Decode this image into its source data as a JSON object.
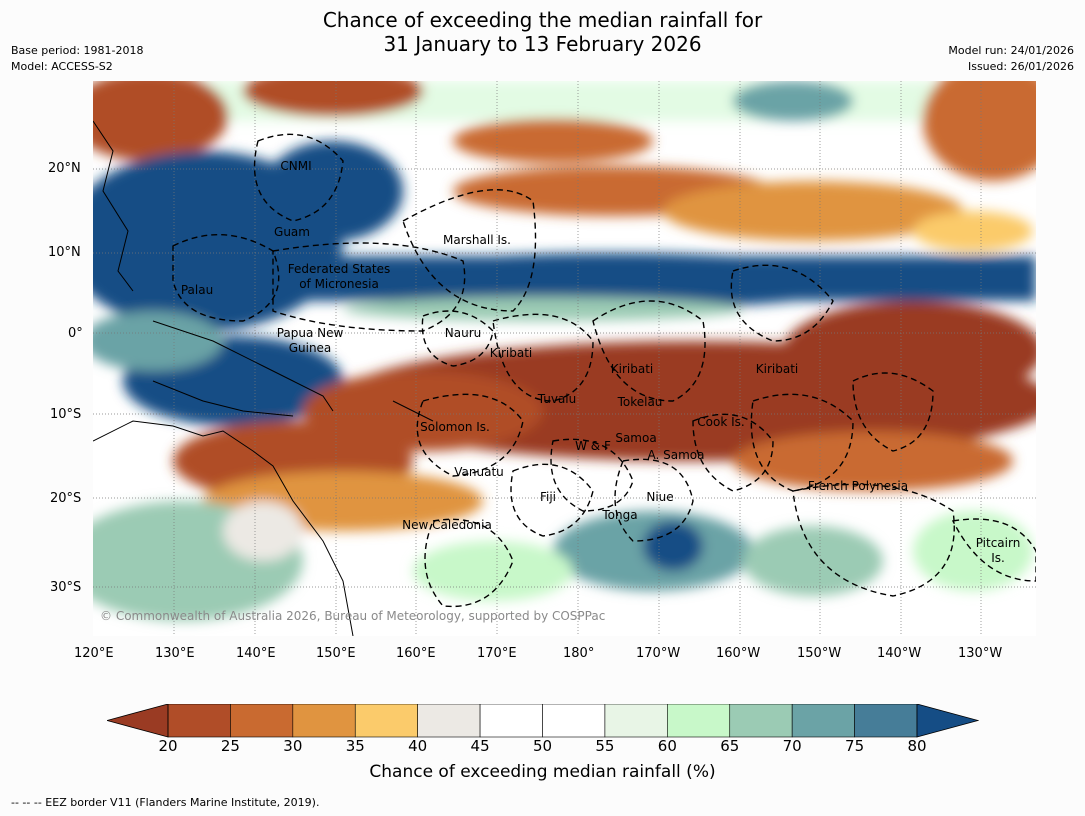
{
  "title": {
    "line1": "Chance of exceeding the median rainfall for",
    "line2": "31 January to 13 February 2026"
  },
  "meta": {
    "base_period": "Base period: 1981-2018",
    "model": "Model: ACCESS-S2",
    "model_run": "Model run: 24/01/2026",
    "issued": "Issued: 26/01/2026"
  },
  "lat_labels": [
    "20°N",
    "10°N",
    "0°",
    "10°S",
    "20°S",
    "30°S"
  ],
  "lon_labels": [
    "120°E",
    "130°E",
    "140°E",
    "150°E",
    "160°E",
    "170°E",
    "180°",
    "170°W",
    "160°W",
    "150°W",
    "140°W",
    "130°W"
  ],
  "regions": {
    "cnmi": "CNMI",
    "guam": "Guam",
    "marshall": "Marshall Is.",
    "fsm_1": "Federated States",
    "fsm_2": "of Micronesia",
    "palau": "Palau",
    "png_1": "Papua New",
    "png_2": "Guinea",
    "nauru": "Nauru",
    "kiribati_w": "Kiribati",
    "kiribati_c": "Kiribati",
    "kiribati_e": "Kiribati",
    "tuvalu": "Tuvalu",
    "tokelau": "Tokelau",
    "cook": "Cook Is.",
    "solomon": "Solomon Is.",
    "wf": "W & F",
    "samoa": "Samoa",
    "am_samoa": "A. Samoa",
    "vanuatu": "Vanuatu",
    "fiji": "Fiji",
    "niue": "Niue",
    "tonga": "Tonga",
    "new_caledonia": "New Caledonia",
    "french_polynesia": "French Polynesia",
    "pitcairn_1": "Pitcairn",
    "pitcairn_2": "Is."
  },
  "copyright": "© Commonwealth of Australia 2026, Bureau of Meteorology, supported by COSPPac",
  "colorbar": {
    "title": "Chance of exceeding median rainfall (%)",
    "ticks": [
      "20",
      "25",
      "30",
      "35",
      "40",
      "45",
      "50",
      "55",
      "60",
      "65",
      "70",
      "75",
      "80"
    ],
    "colors": [
      "#9a3b23",
      "#b04d28",
      "#c96a30",
      "#e09440",
      "#fbcb6b",
      "#ece9e4",
      "#ffffff",
      "#ffffff",
      "#e8f5e6",
      "#c8f8c9",
      "#9bcbb4",
      "#6ba3a6",
      "#467d98",
      "#154d85"
    ]
  },
  "footer": "--  --  -- EEZ border V11 (Flanders Marine Institute, 2019)."
}
